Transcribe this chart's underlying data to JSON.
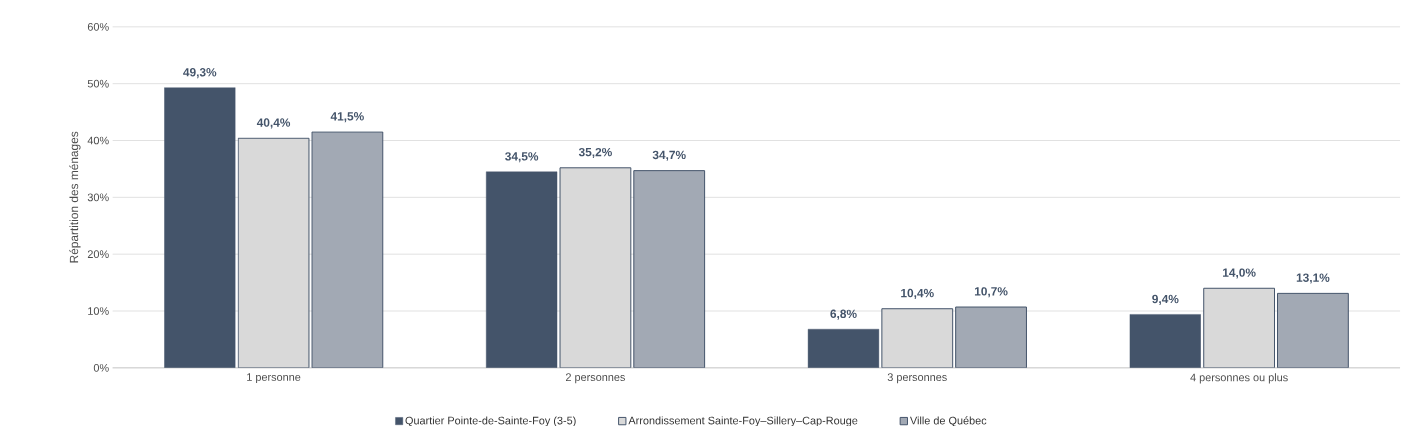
{
  "chart_data": {
    "type": "bar",
    "ylabel": "Répartition des ménages",
    "categories": [
      "1 personne",
      "2 personnes",
      "3 personnes",
      "4 personnes ou plus"
    ],
    "series": [
      {
        "name": "Quartier Pointe-de-Sainte-Foy (3-5)",
        "color": "#44546a",
        "values": [
          49.3,
          34.5,
          6.8,
          9.4
        ],
        "value_labels": [
          "49,3%",
          "34,5%",
          "6,8%",
          "9,4%"
        ]
      },
      {
        "name": "Arrondissement Sainte-Foy–Sillery–Cap-Rouge",
        "color": "#d9d9d9",
        "values": [
          40.4,
          35.2,
          10.4,
          14.0
        ],
        "value_labels": [
          "40,4%",
          "35,2%",
          "10,4%",
          "14,0%"
        ]
      },
      {
        "name": "Ville de Québec",
        "color": "#a2a9b4",
        "values": [
          41.5,
          34.7,
          10.7,
          13.1
        ],
        "value_labels": [
          "41,5%",
          "34,7%",
          "10,7%",
          "13,1%"
        ]
      }
    ],
    "ylim": [
      0,
      60
    ],
    "yticks": [
      {
        "value": 0,
        "label": "0%"
      },
      {
        "value": 10,
        "label": "10%"
      },
      {
        "value": 20,
        "label": "20%"
      },
      {
        "value": 30,
        "label": "30%"
      },
      {
        "value": 40,
        "label": "40%"
      },
      {
        "value": 50,
        "label": "50%"
      },
      {
        "value": 60,
        "label": "60%"
      }
    ],
    "grid": "y",
    "legend": "bottom"
  }
}
